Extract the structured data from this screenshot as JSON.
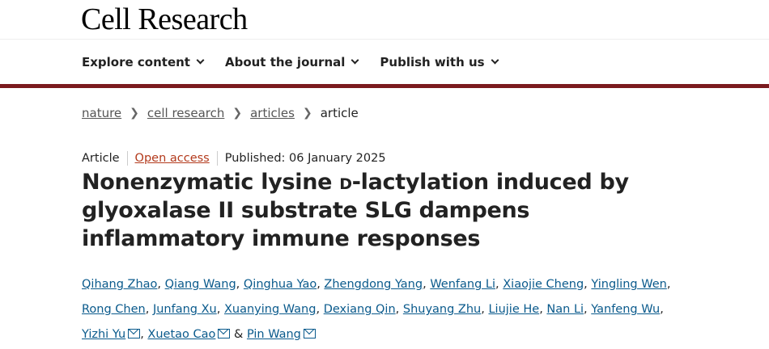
{
  "header": {
    "logo": "Cell Research"
  },
  "nav": {
    "items": [
      "Explore content",
      "About the journal",
      "Publish with us"
    ]
  },
  "breadcrumb": {
    "items": [
      "nature",
      "cell research",
      "articles"
    ],
    "current": "article"
  },
  "meta": {
    "type": "Article",
    "access": "Open access",
    "published": "Published: 06 January 2025"
  },
  "title": {
    "before": "Nonenzymatic lysine ",
    "smallcaps": "d",
    "after": "-lactylation induced by glyoxalase II substrate SLG dampens inflammatory immune responses"
  },
  "authors": [
    {
      "name": "Qihang Zhao"
    },
    {
      "name": "Qiang Wang"
    },
    {
      "name": "Qinghua Yao"
    },
    {
      "name": "Zhengdong Yang"
    },
    {
      "name": "Wenfang Li"
    },
    {
      "name": "Xiaojie Cheng"
    },
    {
      "name": "Yingling Wen"
    },
    {
      "name": "Rong Chen"
    },
    {
      "name": "Junfang Xu"
    },
    {
      "name": "Xuanying Wang"
    },
    {
      "name": "Dexiang Qin"
    },
    {
      "name": "Shuyang Zhu"
    },
    {
      "name": "Liujie He"
    },
    {
      "name": "Nan Li"
    },
    {
      "name": "Yanfeng Wu"
    },
    {
      "name": "Yizhi Yu",
      "mail": true
    },
    {
      "name": "Xuetao Cao",
      "mail": true
    },
    {
      "name": "Pin Wang",
      "mail": true
    }
  ],
  "authors_last_sep": " & ",
  "colors": {
    "brand_bar": "#7b1a1e",
    "link": "#0a5a8c",
    "open_access": "#b33a1c"
  },
  "icons": {
    "nav": "chevron-down-icon",
    "crumb": "chevron-right-icon",
    "author": "mail-icon"
  }
}
